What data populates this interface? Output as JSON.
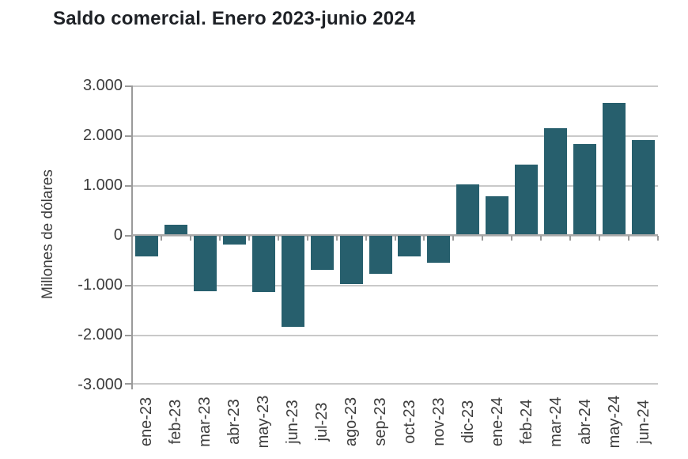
{
  "chart_data": {
    "type": "bar",
    "title": "Saldo comercial. Enero 2023-junio 2024",
    "ylabel": "Millones de dólares",
    "xlabel": "",
    "categories": [
      "ene-23",
      "feb-23",
      "mar-23",
      "abr-23",
      "may-23",
      "jun-23",
      "jul-23",
      "ago-23",
      "sep-23",
      "oct-23",
      "nov-23",
      "dic-23",
      "ene-24",
      "feb-24",
      "mar-24",
      "abr-24",
      "may-24",
      "jun-24"
    ],
    "values": [
      -430,
      200,
      -1130,
      -190,
      -1140,
      -1840,
      -700,
      -980,
      -780,
      -430,
      -560,
      1010,
      780,
      1410,
      2140,
      1820,
      2650,
      1900
    ],
    "ylim": [
      -3000,
      3000
    ],
    "ytick_step": 1000,
    "ytick_labels": [
      "3.000",
      "2.000",
      "1.000",
      "0",
      "-1.000",
      "-2.000",
      "-3.000"
    ],
    "grid": true,
    "legend": "none",
    "colors": {
      "bar": "#275F6D",
      "gridline": "#c9c9c9",
      "axis": "#9a9a9a",
      "title": "#1e2126",
      "tick_label": "#3d3d3d"
    }
  }
}
